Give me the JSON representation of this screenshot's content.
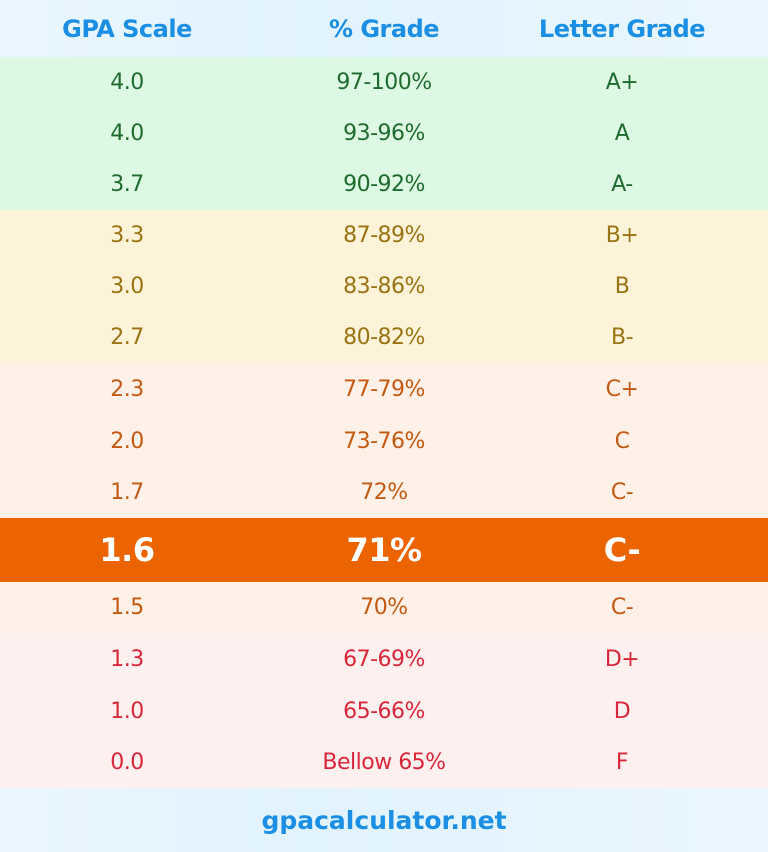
{
  "header": {
    "gpa": "GPA Scale",
    "percent": "% Grade",
    "letter": "Letter Grade"
  },
  "colors": {
    "header_text": "#1a8fe3",
    "highlight": "#ec6400",
    "green": "#ddf9e4",
    "yellow": "#fcf3d9",
    "peach": "#fff1e8",
    "pink": "#fff0f0"
  },
  "rows": [
    {
      "gpa": "4.0",
      "percent": "97-100%",
      "letter": "A+",
      "group": "green"
    },
    {
      "gpa": "4.0",
      "percent": "93-96%",
      "letter": "A",
      "group": "green"
    },
    {
      "gpa": "3.7",
      "percent": "90-92%",
      "letter": "A-",
      "group": "green"
    },
    {
      "gpa": "3.3",
      "percent": "87-89%",
      "letter": "B+",
      "group": "yellow"
    },
    {
      "gpa": "3.0",
      "percent": "83-86%",
      "letter": "B",
      "group": "yellow"
    },
    {
      "gpa": "2.7",
      "percent": "80-82%",
      "letter": "B-",
      "group": "yellow"
    },
    {
      "gpa": "2.3",
      "percent": "77-79%",
      "letter": "C+",
      "group": "peach"
    },
    {
      "gpa": "2.0",
      "percent": "73-76%",
      "letter": "C",
      "group": "peach"
    },
    {
      "gpa": "1.7",
      "percent": "72%",
      "letter": "C-",
      "group": "peach"
    },
    {
      "gpa": "1.6",
      "percent": "71%",
      "letter": "C-",
      "group": "highlight"
    },
    {
      "gpa": "1.5",
      "percent": "70%",
      "letter": "C-",
      "group": "peach"
    },
    {
      "gpa": "1.3",
      "percent": "67-69%",
      "letter": "D+",
      "group": "pink"
    },
    {
      "gpa": "1.0",
      "percent": "65-66%",
      "letter": "D",
      "group": "pink"
    },
    {
      "gpa": "0.0",
      "percent": "Bellow 65%",
      "letter": "F",
      "group": "pink"
    }
  ],
  "footer": {
    "site": "gpacalculator.net"
  }
}
